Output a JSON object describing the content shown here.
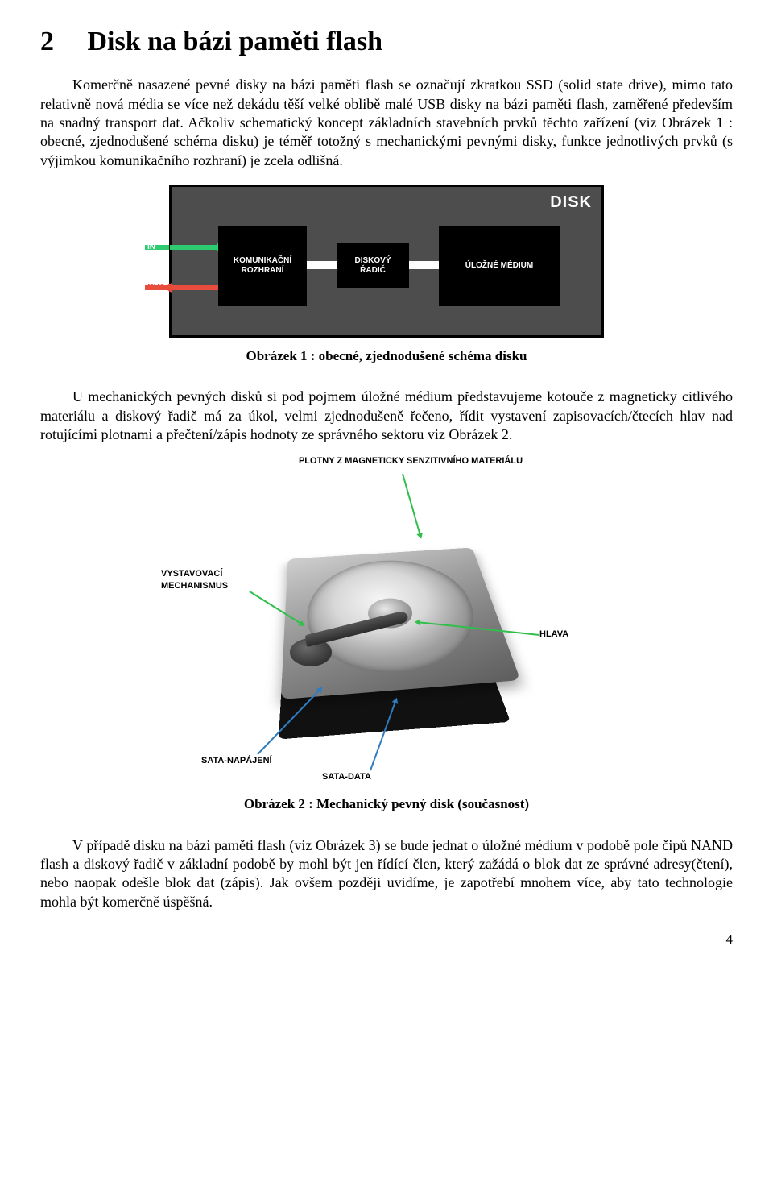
{
  "chapter": {
    "number": "2",
    "title": "Disk na bázi paměti flash"
  },
  "para1": "Komerčně nasazené pevné disky na bázi paměti flash se označují zkratkou SSD (solid state drive), mimo tato relativně nová média se více než dekádu těší velké oblibě malé USB disky na bázi paměti flash, zaměřené především na snadný transport dat. Ačkoliv schematický koncept základních stavebních prvků těchto zařízení (viz Obrázek 1 : obecné, zjednodušené schéma disku) je téměř totožný s mechanickými pevnými disky, funkce jednotlivých prvků (s výjimkou komunikačního rozhraní) je zcela odlišná.",
  "fig1": {
    "title": "DISK",
    "in": "IN",
    "out": "OUT",
    "box_komunikacni": "KOMUNIKAČNÍ ROZHRANÍ",
    "box_radic": "DISKOVÝ ŘADIČ",
    "box_medium": "ÚLOŽNÉ MÉDIUM",
    "colors": {
      "outer_bg": "#4d4d4d",
      "box_bg": "#000000",
      "text": "#ffffff",
      "in_arrow": "#2ecc71",
      "out_arrow": "#e74c3c",
      "link": "#ffffff"
    }
  },
  "caption1": "Obrázek 1 : obecné, zjednodušené schéma disku",
  "para2": "U mechanických pevných disků si pod pojmem úložné médium představujeme kotouče z magneticky citlivého materiálu a diskový řadič má za úkol, velmi zjednodušeně řečeno, řídit vystavení zapisovacích/čtecích hlav nad rotujícími plotnami a přečtení/zápis hodnoty ze správného sektoru viz Obrázek 2.",
  "fig2": {
    "labels": {
      "plotny": "PLOTNY Z MAGNETICKY SENZITIVNÍHO MATERIÁLU",
      "vystavovaci": "VYSTAVOVACÍ MECHANISMUS",
      "hlava": "HLAVA",
      "sata_napajeni": "SATA-NAPÁJENÍ",
      "sata_data": "SATA-DATA"
    },
    "colors": {
      "green_arrow": "#2fbf4a",
      "blue_arrow": "#2f7dbf",
      "label_text": "#000000",
      "body_light": "#cfcfcf",
      "body_dark": "#5d5d5d",
      "base": "#111111"
    }
  },
  "caption2": "Obrázek 2 : Mechanický pevný disk (současnost)",
  "para3": "V případě disku na bázi paměti flash (viz Obrázek 3) se bude jednat o úložné médium v podobě pole čipů NAND flash a diskový řadič v základní podobě by mohl být jen řídící člen, který zažádá o blok dat ze správné adresy(čtení), nebo naopak odešle blok dat (zápis). Jak ovšem později uvidíme, je zapotřebí mnohem více, aby tato technologie mohla být komerčně úspěšná.",
  "page_number": "4"
}
